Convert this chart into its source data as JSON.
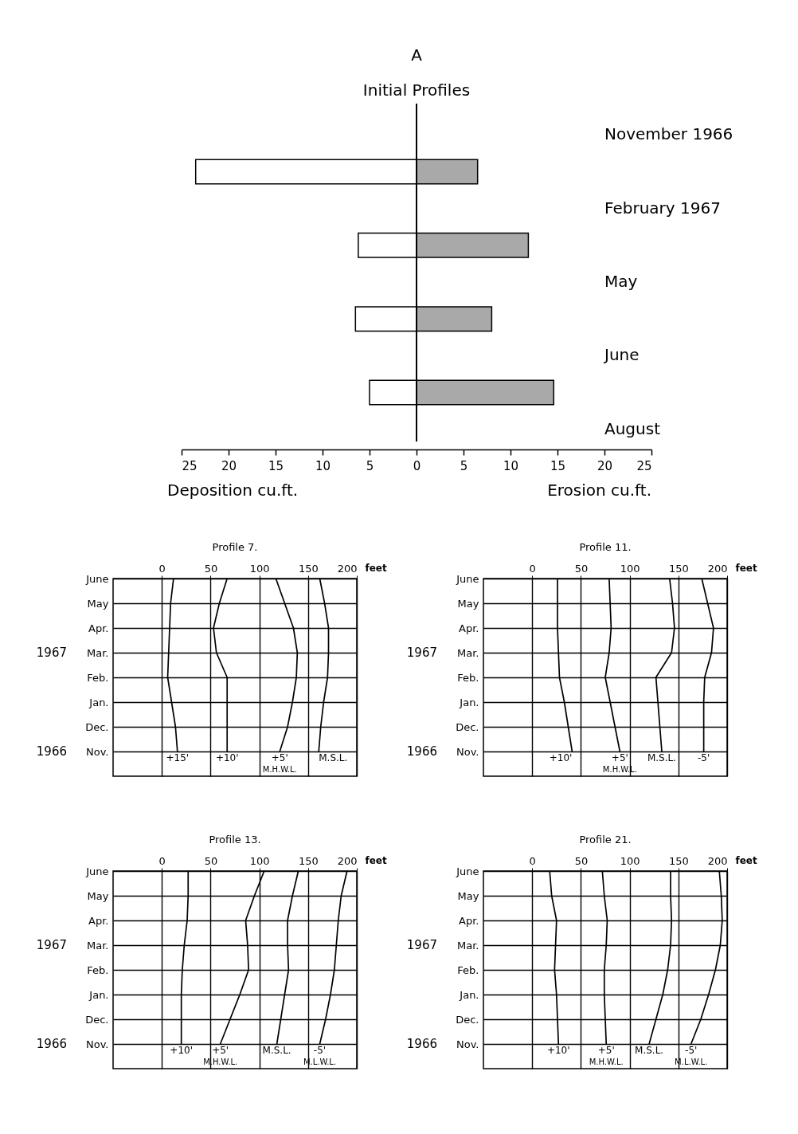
{
  "chart_data": [
    {
      "type": "bar",
      "title": "A",
      "orientation": "horizontal",
      "stacked": true,
      "categories": [
        null,
        null,
        null,
        null
      ],
      "xlim": [
        -25,
        25
      ],
      "xticks": [
        {
          "value": -25,
          "label": "25"
        },
        {
          "value": -20,
          "label": "20"
        },
        {
          "value": -15,
          "label": "15"
        },
        {
          "value": -10,
          "label": "10"
        },
        {
          "value": -5,
          "label": "5"
        },
        0,
        5,
        10,
        15,
        20,
        25
      ],
      "tick_labels": "x",
      "legend": false,
      "series": [
        {
          "color": "#ffffff",
          "values": [
            -23.5,
            -6.2,
            -6.5,
            -5.0
          ]
        },
        {
          "color": "#a9a9a9",
          "values": [
            6.5,
            11.9,
            8.0,
            14.6
          ]
        }
      ],
      "ref_lines": [
        {
          "axis": "x",
          "value": 0,
          "label": "Initial Profiles"
        }
      ],
      "annotations": [
        "November 1966",
        "February 1967",
        "May",
        "June",
        "August",
        "Deposition cu.ft.",
        "Erosion cu.ft."
      ]
    },
    {
      "type": "line",
      "subtitle": "Profile 7.",
      "orientation": "horizontal",
      "categories": [
        "June",
        "May",
        "Apr.",
        "Mar.",
        "Feb.",
        "Jan.",
        "Dec.",
        "Nov."
      ],
      "xlim": [
        -50,
        200
      ],
      "xticks": [
        0,
        50,
        100,
        150,
        200
      ],
      "xlabel": "feet",
      "grid": true,
      "legend": false,
      "series": [
        {
          "name": "+15'",
          "color": "#000000",
          "values": [
            12,
            9,
            8,
            7,
            6,
            10,
            14,
            16
          ]
        },
        {
          "name": "+10'",
          "color": "#000000",
          "values": [
            67,
            59,
            53,
            56,
            67,
            67,
            67,
            67
          ]
        },
        {
          "name": "+5'",
          "color": "#000000",
          "values": [
            117,
            126,
            135,
            139,
            138,
            134,
            129,
            121
          ]
        },
        {
          "name": "M.S.L.",
          "color": "#000000",
          "values": [
            162,
            167,
            171,
            171,
            170,
            166,
            163,
            161
          ]
        }
      ],
      "annotations": [
        "1967",
        "1966",
        {
          "text": "M.H.W.L.",
          "x": 121,
          "y": "Nov."
        }
      ]
    },
    {
      "type": "line",
      "subtitle": "Profile 11.",
      "orientation": "horizontal",
      "categories": [
        "June",
        "May",
        "Apr.",
        "Mar.",
        "Feb.",
        "Jan.",
        "Dec.",
        "Nov."
      ],
      "xlim": [
        -50,
        200
      ],
      "xticks": [
        0,
        50,
        100,
        150,
        200
      ],
      "xlabel": "feet",
      "grid": true,
      "legend": false,
      "series": [
        {
          "name": "+10'",
          "color": "#000000",
          "values": [
            26,
            26,
            26,
            27,
            28,
            33,
            37,
            41
          ]
        },
        {
          "name": "+5'",
          "color": "#000000",
          "values": [
            79,
            80,
            81,
            79,
            75,
            80,
            85,
            90
          ]
        },
        {
          "name": "M.S.L.",
          "color": "#000000",
          "values": [
            141,
            144,
            146,
            143,
            127,
            129,
            131,
            133
          ]
        },
        {
          "name": "-5'",
          "color": "#000000",
          "values": [
            174,
            180,
            186,
            184,
            177,
            176,
            176,
            176
          ]
        }
      ],
      "annotations": [
        "1967",
        "1966",
        {
          "text": "M.H.W.L.",
          "x": 90,
          "y": "Nov."
        }
      ]
    },
    {
      "type": "line",
      "subtitle": "Profile 13.",
      "orientation": "horizontal",
      "categories": [
        "June",
        "May",
        "Apr.",
        "Mar.",
        "Feb.",
        "Jan.",
        "Dec.",
        "Nov."
      ],
      "xlim": [
        -50,
        200
      ],
      "xticks": [
        0,
        50,
        100,
        150,
        200
      ],
      "xlabel": "feet",
      "grid": true,
      "legend": false,
      "series": [
        {
          "name": "+10'",
          "color": "#000000",
          "values": [
            27,
            27,
            26,
            23,
            21,
            20,
            20,
            20
          ]
        },
        {
          "name": "+5'",
          "color": "#000000",
          "values": [
            105,
            95,
            86,
            88,
            89,
            80,
            70,
            60
          ]
        },
        {
          "name": "M.S.L.",
          "color": "#000000",
          "values": [
            140,
            134,
            129,
            129,
            130,
            126,
            122,
            118
          ]
        },
        {
          "name": "-5'",
          "color": "#000000",
          "values": [
            190,
            184,
            181,
            179,
            177,
            173,
            168,
            162
          ]
        }
      ],
      "annotations": [
        "1967",
        "1966",
        {
          "text": "M.H.W.L.",
          "x": 60,
          "y": "Nov."
        },
        {
          "text": "M.L.W.L.",
          "x": 162,
          "y": "Nov."
        }
      ]
    },
    {
      "type": "line",
      "subtitle": "Profile 21.",
      "orientation": "horizontal",
      "categories": [
        "June",
        "May",
        "Apr.",
        "Mar.",
        "Feb.",
        "Jan.",
        "Dec.",
        "Nov."
      ],
      "xlim": [
        -50,
        200
      ],
      "xticks": [
        0,
        50,
        100,
        150,
        200
      ],
      "xlabel": "feet",
      "grid": true,
      "legend": false,
      "series": [
        {
          "name": "+10'",
          "color": "#000000",
          "values": [
            18,
            20,
            25,
            24,
            23,
            25,
            26,
            27
          ]
        },
        {
          "name": "+5'",
          "color": "#000000",
          "values": [
            72,
            74,
            77,
            76,
            74,
            74,
            75,
            76
          ]
        },
        {
          "name": "M.S.L.",
          "color": "#000000",
          "values": [
            142,
            142,
            143,
            142,
            139,
            134,
            127,
            120
          ]
        },
        {
          "name": "-5'",
          "color": "#000000",
          "values": [
            192,
            194,
            195,
            193,
            188,
            181,
            173,
            163
          ]
        }
      ],
      "annotations": [
        "1967",
        "1966",
        {
          "text": "M.H.W.L.",
          "x": 76,
          "y": "Nov."
        },
        {
          "text": "M.L.W.L.",
          "x": 163,
          "y": "Nov."
        }
      ]
    }
  ]
}
